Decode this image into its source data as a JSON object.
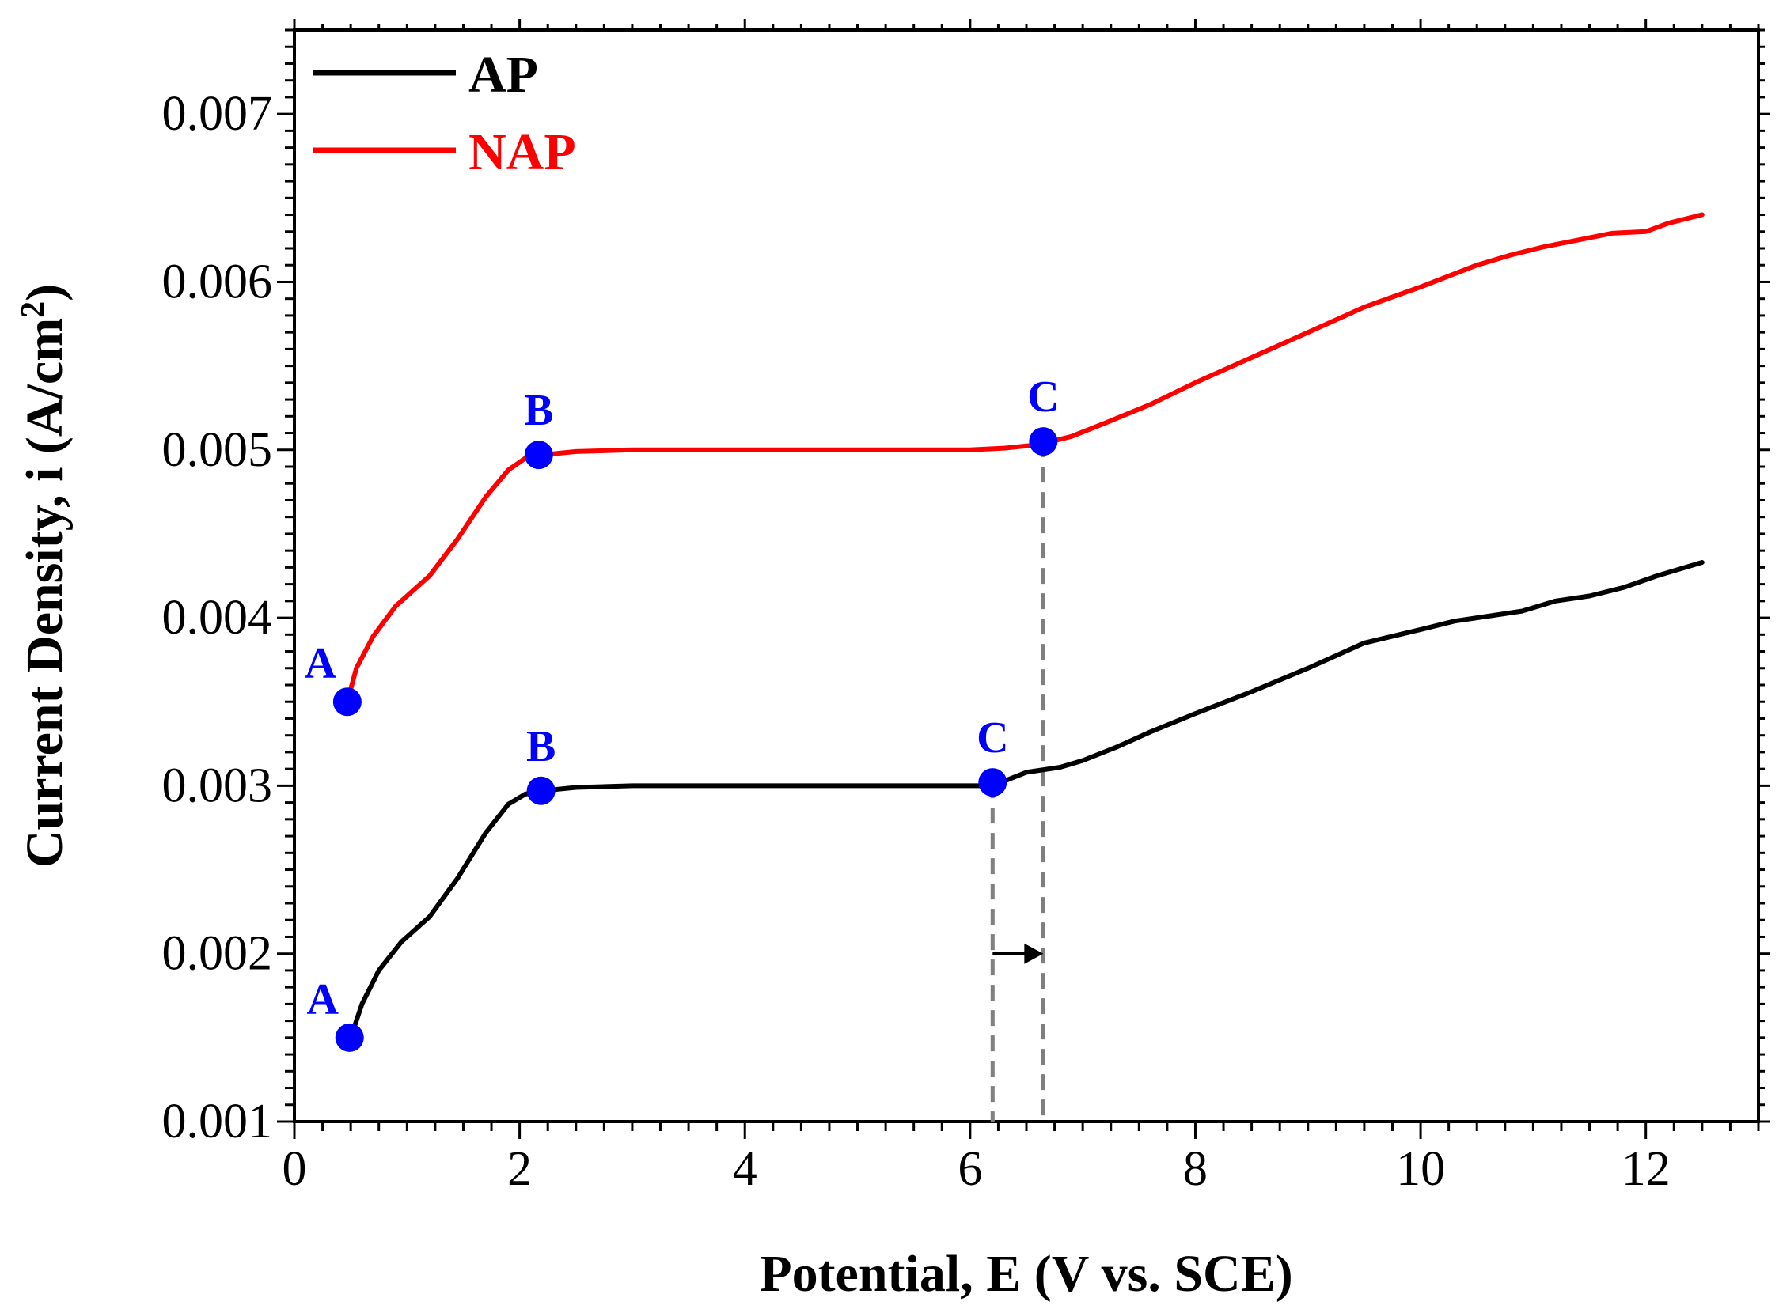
{
  "chart_data": {
    "type": "line",
    "xlabel": "Potential, E (V vs. SCE)",
    "ylabel": "Current Density, i (A/cm²)",
    "ylabel_parts": {
      "main": "Current Density, i (A/cm",
      "sup": "2",
      "end": ")"
    },
    "xlim": [
      0,
      13
    ],
    "ylim": [
      0.001,
      0.0075
    ],
    "x_ticks": [
      0,
      2,
      4,
      6,
      8,
      10,
      12
    ],
    "x_tick_labels": [
      "0",
      "2",
      "4",
      "6",
      "8",
      "10",
      "12"
    ],
    "y_ticks": [
      0.001,
      0.002,
      0.003,
      0.004,
      0.005,
      0.006,
      0.007
    ],
    "y_tick_labels": [
      "0.001",
      "0.002",
      "0.003",
      "0.004",
      "0.005",
      "0.006",
      "0.007"
    ],
    "grid": false,
    "legend_position": "top-left",
    "series": [
      {
        "name": "AP",
        "color": "#000000",
        "x": [
          0.5,
          0.6,
          0.75,
          0.95,
          1.2,
          1.45,
          1.7,
          1.9,
          2.05,
          2.2,
          2.5,
          3.0,
          4.0,
          5.0,
          6.0,
          6.2,
          6.5,
          6.8,
          7.0,
          7.3,
          7.6,
          8.0,
          8.5,
          9.0,
          9.5,
          10.0,
          10.3,
          10.6,
          10.9,
          11.2,
          11.5,
          11.8,
          12.1,
          12.5
        ],
        "values": [
          0.0015,
          0.0017,
          0.0019,
          0.00207,
          0.00222,
          0.00245,
          0.00272,
          0.00289,
          0.00295,
          0.00297,
          0.00299,
          0.003,
          0.003,
          0.003,
          0.003,
          0.003,
          0.00308,
          0.00311,
          0.00315,
          0.00323,
          0.00332,
          0.00343,
          0.00356,
          0.0037,
          0.00385,
          0.00393,
          0.00398,
          0.00401,
          0.00404,
          0.0041,
          0.00413,
          0.00418,
          0.00425,
          0.00433
        ]
      },
      {
        "name": "NAP",
        "color": "#ff0000",
        "x": [
          0.47,
          0.55,
          0.7,
          0.9,
          1.2,
          1.45,
          1.7,
          1.9,
          2.05,
          2.2,
          2.5,
          3.0,
          4.0,
          5.0,
          6.0,
          6.3,
          6.6,
          6.9,
          7.2,
          7.6,
          8.0,
          8.5,
          9.0,
          9.5,
          10.0,
          10.5,
          10.8,
          11.1,
          11.4,
          11.7,
          12.0,
          12.2,
          12.5
        ],
        "values": [
          0.0035,
          0.0037,
          0.00389,
          0.00407,
          0.00425,
          0.00447,
          0.00472,
          0.00488,
          0.00495,
          0.00497,
          0.00499,
          0.005,
          0.005,
          0.005,
          0.005,
          0.00501,
          0.00503,
          0.00508,
          0.00516,
          0.00527,
          0.0054,
          0.00555,
          0.0057,
          0.00585,
          0.00597,
          0.0061,
          0.00616,
          0.00621,
          0.00625,
          0.00629,
          0.0063,
          0.00635,
          0.0064
        ]
      }
    ],
    "points": [
      {
        "series": "NAP",
        "label": "A",
        "x": 0.47,
        "y": 0.0035
      },
      {
        "series": "NAP",
        "label": "B",
        "x": 2.17,
        "y": 0.00497
      },
      {
        "series": "NAP",
        "label": "C",
        "x": 6.65,
        "y": 0.00505
      },
      {
        "series": "AP",
        "label": "A",
        "x": 0.49,
        "y": 0.0015
      },
      {
        "series": "AP",
        "label": "B",
        "x": 2.19,
        "y": 0.00297
      },
      {
        "series": "AP",
        "label": "C",
        "x": 6.2,
        "y": 0.00302
      }
    ],
    "point_color": "#0000ff",
    "annotations": {
      "dashed_lines": [
        {
          "x": 6.2,
          "y_top": 0.00302,
          "y_bottom": 0.001
        },
        {
          "x": 6.65,
          "y_top": 0.00505,
          "y_bottom": 0.001
        }
      ],
      "arrow": {
        "x_from": 6.2,
        "x_to": 6.65,
        "y": 0.002
      }
    }
  }
}
